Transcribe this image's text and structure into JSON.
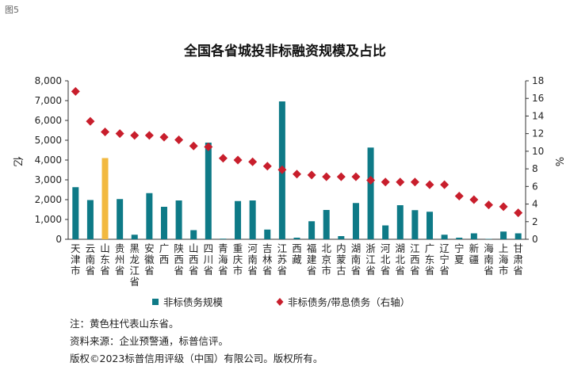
{
  "figure_label": "图5",
  "chart_data": {
    "type": "bar",
    "title": "全国各省城投非标融资规模及占比",
    "ylabel_left": "亿",
    "ylabel_right": "%",
    "ylim_left": [
      0,
      8000
    ],
    "ylim_right": [
      0,
      18
    ],
    "left_ticks": [
      "0",
      "1,000",
      "2,000",
      "3,000",
      "4,000",
      "5,000",
      "6,000",
      "7,000",
      "8,000"
    ],
    "right_ticks": [
      "0",
      "2",
      "4",
      "6",
      "8",
      "10",
      "12",
      "14",
      "16",
      "18"
    ],
    "grid": false,
    "legend_position": "bottom",
    "categories": [
      "天津市",
      "云南省",
      "山东省",
      "贵州省",
      "黑龙江省",
      "安徽省",
      "广西",
      "陕西省",
      "山西省",
      "四川省",
      "青海省",
      "重庆市",
      "河南省",
      "吉林省",
      "江苏省",
      "西藏",
      "福建省",
      "北京市",
      "内蒙古",
      "湖南省",
      "浙江省",
      "河北省",
      "湖北省",
      "江西省",
      "广东省",
      "辽宁省",
      "宁夏",
      "新疆",
      "海南省",
      "上海市",
      "甘肃省"
    ],
    "series": [
      {
        "name": "非标债务规模",
        "kind": "bar",
        "axis": "left",
        "color": "#0e7a87",
        "highlight_color": "#f2b940",
        "highlight_index": 2,
        "values": [
          2630,
          1980,
          4100,
          2030,
          230,
          2330,
          1640,
          1960,
          460,
          4880,
          30,
          1930,
          1960,
          490,
          6960,
          80,
          910,
          1480,
          160,
          1830,
          4630,
          700,
          1720,
          1470,
          1390,
          230,
          80,
          300,
          20,
          390,
          300
        ]
      },
      {
        "name": "非标债务/带息债务（右轴）",
        "kind": "marker",
        "axis": "right",
        "color": "#c81e2c",
        "values": [
          16.8,
          13.4,
          12.2,
          12.0,
          11.8,
          11.8,
          11.6,
          11.3,
          10.6,
          10.5,
          9.2,
          9.0,
          8.8,
          8.3,
          7.9,
          7.4,
          7.3,
          7.1,
          7.1,
          7.1,
          6.7,
          6.5,
          6.5,
          6.5,
          6.2,
          6.2,
          4.9,
          4.5,
          3.9,
          3.7,
          3.0
        ]
      }
    ]
  },
  "notes": [
    "注：黄色柱代表山东省。",
    "资料来源：企业预警通，标普信评。",
    "版权©2023标普信用评级（中国）有限公司。版权所有。"
  ]
}
